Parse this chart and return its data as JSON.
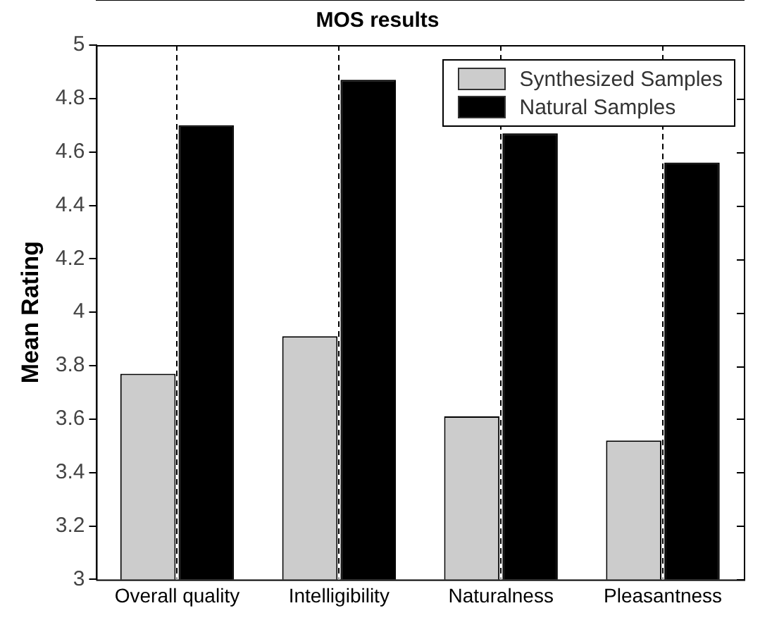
{
  "chart_data": {
    "type": "bar",
    "title": "MOS results",
    "ylabel": "Mean Rating",
    "categories": [
      "Overall quality",
      "Intelligibility",
      "Naturalness",
      "Pleasantness"
    ],
    "series": [
      {
        "name": "Synthesized Samples",
        "color": "#cccccc",
        "values": [
          3.77,
          3.91,
          3.61,
          3.52
        ]
      },
      {
        "name": "Natural Samples",
        "color": "#000000",
        "values": [
          4.7,
          4.87,
          4.67,
          4.56
        ]
      }
    ],
    "ylim": [
      3,
      5
    ],
    "yticks": [
      3,
      3.2,
      3.4,
      3.6,
      3.8,
      4,
      4.2,
      4.4,
      4.6,
      4.8,
      5
    ],
    "grid": "x",
    "legend": "top right"
  }
}
